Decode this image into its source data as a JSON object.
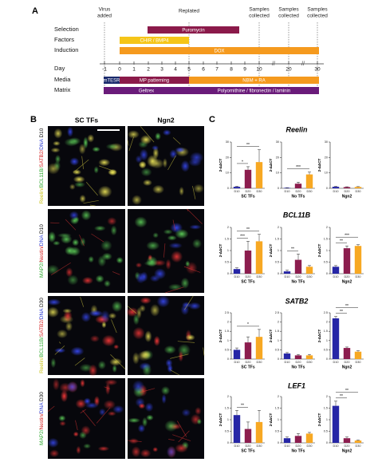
{
  "panel_a": {
    "label": "A",
    "events": [
      {
        "lines": [
          "Virus",
          "added"
        ]
      },
      {
        "lines": [
          "Replated"
        ]
      },
      {
        "lines": [
          "Samples",
          "collected"
        ]
      },
      {
        "lines": [
          "Samples",
          "collected"
        ]
      },
      {
        "lines": [
          "Samples",
          "collected"
        ]
      }
    ],
    "rows": [
      "Selection",
      "Factors",
      "Induction",
      "Day",
      "Media",
      "Matrix"
    ],
    "days": [
      -1,
      0,
      1,
      2,
      3,
      4,
      5,
      6,
      7,
      8,
      9,
      10,
      20,
      30
    ],
    "bars": [
      {
        "label": "Puromycin",
        "color": "#8b1a4a"
      },
      {
        "label": "CHIR / BMP4",
        "color": "#f5c518"
      },
      {
        "label": "DOX",
        "color": "#f59a1e"
      },
      {
        "label": "mTESR",
        "color": "#1a2a6c"
      },
      {
        "label": "MP patterning",
        "color": "#8b1a4a"
      },
      {
        "label": "NBM + RA",
        "color": "#f59a1e"
      },
      {
        "label": "Geltrex",
        "color": "#6a1b7a"
      },
      {
        "label": "Polyornithine / fibronectin / laminin",
        "color": "#6a1b7a"
      }
    ]
  },
  "panel_b": {
    "label": "B",
    "columns": [
      "SC TFs",
      "Ngn2"
    ],
    "rows": [
      {
        "label": [
          {
            "text": "Reelin/",
            "color": "#c9c21a"
          },
          {
            "text": "BCL11B/",
            "color": "#2fa82f"
          },
          {
            "text": "SATB2/",
            "color": "#d42020"
          },
          {
            "text": "DNA",
            "color": "#2a3ad0"
          },
          {
            "text": " D10",
            "color": "#111111"
          }
        ]
      },
      {
        "label": [
          {
            "text": "MAP2/",
            "color": "#2fa82f"
          },
          {
            "text": "Nestin/",
            "color": "#d42020"
          },
          {
            "text": "DNA",
            "color": "#2a3ad0"
          },
          {
            "text": " D10",
            "color": "#111111"
          }
        ]
      },
      {
        "label": [
          {
            "text": "Reelin/",
            "color": "#c9c21a"
          },
          {
            "text": "BCL11B/",
            "color": "#2fa82f"
          },
          {
            "text": "SATB2/",
            "color": "#d42020"
          },
          {
            "text": "DNA",
            "color": "#2a3ad0"
          },
          {
            "text": " D30",
            "color": "#111111"
          }
        ]
      },
      {
        "label": [
          {
            "text": "MAP2/",
            "color": "#2fa82f"
          },
          {
            "text": "Nestin/",
            "color": "#d42020"
          },
          {
            "text": "DNA",
            "color": "#2a3ad0"
          },
          {
            "text": " D30",
            "color": "#111111"
          }
        ]
      }
    ]
  },
  "panel_c": {
    "label": "C",
    "genes": [
      "Reelin",
      "BCL11B",
      "SATB2",
      "LEF1"
    ]
  },
  "chart_data": [
    {
      "type": "bar",
      "xlabel": "SC TFs",
      "ylabel": "2-ΔΔCT",
      "categories": [
        "D10",
        "D20",
        "D30"
      ],
      "values": [
        1,
        12,
        17
      ],
      "errors": [
        0.3,
        2,
        8
      ],
      "colors": [
        "#2626a6",
        "#8c1d4e",
        "#f7a823"
      ],
      "ylim": [
        0,
        30
      ],
      "yticks": [
        0,
        10,
        20,
        30
      ],
      "annotations": [
        {
          "text": "*",
          "span": [
            "D10",
            "D20"
          ]
        },
        {
          "text": "**",
          "span": [
            "D10",
            "D30"
          ]
        }
      ]
    },
    {
      "type": "bar",
      "xlabel": "No TFs",
      "ylabel": "2-ΔΔCT",
      "categories": [
        "D10",
        "D20",
        "D30"
      ],
      "values": [
        0.3,
        3,
        9
      ],
      "errors": [
        0.1,
        1,
        1.5
      ],
      "colors": [
        "#2626a6",
        "#8c1d4e",
        "#f7a823"
      ],
      "ylim": [
        0,
        30
      ],
      "yticks": [
        0,
        10,
        20,
        30
      ],
      "annotations": [
        {
          "text": "***",
          "span": [
            "D10",
            "D30"
          ]
        }
      ]
    },
    {
      "type": "bar",
      "xlabel": "Ngn2",
      "ylabel": "2-ΔΔCT",
      "categories": [
        "D10",
        "D20",
        "D30"
      ],
      "values": [
        1,
        0.8,
        0.9
      ],
      "errors": [
        0.3,
        0.2,
        0.2
      ],
      "colors": [
        "#2626a6",
        "#8c1d4e",
        "#f7a823"
      ],
      "ylim": [
        0,
        30
      ],
      "yticks": [
        0,
        10,
        20,
        30
      ],
      "annotations": []
    },
    {
      "type": "bar",
      "xlabel": "SC TFs",
      "ylabel": "2-ΔΔCT",
      "categories": [
        "D10",
        "D20",
        "D30"
      ],
      "values": [
        0.2,
        1.0,
        1.4
      ],
      "errors": [
        0.05,
        0.4,
        0.3
      ],
      "colors": [
        "#2626a6",
        "#8c1d4e",
        "#f7a823"
      ],
      "ylim": [
        0,
        2
      ],
      "yticks": [
        0,
        0.5,
        1,
        1.5,
        2
      ],
      "annotations": [
        {
          "text": "***",
          "span": [
            "D10",
            "D20"
          ]
        },
        {
          "text": "**",
          "span": [
            "D10",
            "D30"
          ]
        }
      ]
    },
    {
      "type": "bar",
      "xlabel": "No TFs",
      "ylabel": "2-ΔΔCT",
      "categories": [
        "D10",
        "D20",
        "D30"
      ],
      "values": [
        0.1,
        0.6,
        0.3
      ],
      "errors": [
        0.05,
        0.25,
        0.05
      ],
      "colors": [
        "#2626a6",
        "#8c1d4e",
        "#f7a823"
      ],
      "ylim": [
        0,
        2
      ],
      "yticks": [
        0,
        0.5,
        1,
        1.5,
        2
      ],
      "annotations": [
        {
          "text": "**",
          "span": [
            "D10",
            "D20"
          ]
        }
      ]
    },
    {
      "type": "bar",
      "xlabel": "Ngn2",
      "ylabel": "2-ΔΔCT",
      "categories": [
        "D10",
        "D20",
        "D30"
      ],
      "values": [
        0.3,
        1.1,
        1.2
      ],
      "errors": [
        0.05,
        0.1,
        0.05
      ],
      "colors": [
        "#2626a6",
        "#8c1d4e",
        "#f7a823"
      ],
      "ylim": [
        0,
        2
      ],
      "yticks": [
        0,
        0.5,
        1,
        1.5,
        2
      ],
      "annotations": [
        {
          "text": "**",
          "span": [
            "D10",
            "D20"
          ]
        },
        {
          "text": "***",
          "span": [
            "D10",
            "D30"
          ]
        }
      ]
    },
    {
      "type": "bar",
      "xlabel": "SC TFs",
      "ylabel": "2-ΔΔCT",
      "categories": [
        "D10",
        "D20",
        "D30"
      ],
      "values": [
        0.5,
        0.9,
        1.2
      ],
      "errors": [
        0.1,
        0.3,
        0.4
      ],
      "colors": [
        "#2626a6",
        "#8c1d4e",
        "#f7a823"
      ],
      "ylim": [
        0,
        2.5
      ],
      "yticks": [
        0,
        0.5,
        1,
        1.5,
        2,
        2.5
      ],
      "annotations": [
        {
          "text": "*",
          "span": [
            "D10",
            "D30"
          ]
        }
      ]
    },
    {
      "type": "bar",
      "xlabel": "No TFs",
      "ylabel": "2-ΔΔCT",
      "categories": [
        "D10",
        "D20",
        "D30"
      ],
      "values": [
        0.3,
        0.2,
        0.2
      ],
      "errors": [
        0.05,
        0.05,
        0.05
      ],
      "colors": [
        "#2626a6",
        "#8c1d4e",
        "#f7a823"
      ],
      "ylim": [
        0,
        2.5
      ],
      "yticks": [
        0,
        0.5,
        1,
        1.5,
        2,
        2.5
      ],
      "annotations": []
    },
    {
      "type": "bar",
      "xlabel": "Ngn2",
      "ylabel": "2-ΔΔCT",
      "categories": [
        "D10",
        "D20",
        "D30"
      ],
      "values": [
        2.2,
        0.6,
        0.4
      ],
      "errors": [
        0.1,
        0.05,
        0.05
      ],
      "colors": [
        "#2626a6",
        "#8c1d4e",
        "#f7a823"
      ],
      "ylim": [
        0,
        2.5
      ],
      "yticks": [
        0,
        0.5,
        1,
        1.5,
        2,
        2.5
      ],
      "annotations": [
        {
          "text": "**",
          "span": [
            "D10",
            "D20"
          ]
        },
        {
          "text": "**",
          "span": [
            "D10",
            "D30"
          ]
        }
      ]
    },
    {
      "type": "bar",
      "xlabel": "SC TFs",
      "ylabel": "2-ΔΔCT",
      "categories": [
        "D10",
        "D20",
        "D30"
      ],
      "values": [
        1.2,
        0.6,
        0.9
      ],
      "errors": [
        0.2,
        0.3,
        0.5
      ],
      "colors": [
        "#2626a6",
        "#8c1d4e",
        "#f7a823"
      ],
      "ylim": [
        0,
        2
      ],
      "yticks": [
        0,
        0.5,
        1,
        1.5,
        2
      ],
      "annotations": [
        {
          "text": "**",
          "span": [
            "D10",
            "D20"
          ]
        }
      ]
    },
    {
      "type": "bar",
      "xlabel": "No TFs",
      "ylabel": "2-ΔΔCT",
      "categories": [
        "D10",
        "D20",
        "D30"
      ],
      "values": [
        0.2,
        0.3,
        0.4
      ],
      "errors": [
        0.05,
        0.1,
        0.05
      ],
      "colors": [
        "#2626a6",
        "#8c1d4e",
        "#f7a823"
      ],
      "ylim": [
        0,
        2
      ],
      "yticks": [
        0,
        0.5,
        1,
        1.5,
        2
      ],
      "annotations": []
    },
    {
      "type": "bar",
      "xlabel": "Ngn2",
      "ylabel": "2-ΔΔCT",
      "categories": [
        "D10",
        "D20",
        "D30"
      ],
      "values": [
        1.6,
        0.2,
        0.1
      ],
      "errors": [
        0.2,
        0.05,
        0.02
      ],
      "colors": [
        "#2626a6",
        "#8c1d4e",
        "#f7a823"
      ],
      "ylim": [
        0,
        2
      ],
      "yticks": [
        0,
        0.5,
        1,
        1.5,
        2
      ],
      "annotations": [
        {
          "text": "**",
          "span": [
            "D10",
            "D20"
          ]
        },
        {
          "text": "**",
          "span": [
            "D10",
            "D30"
          ]
        }
      ]
    }
  ]
}
